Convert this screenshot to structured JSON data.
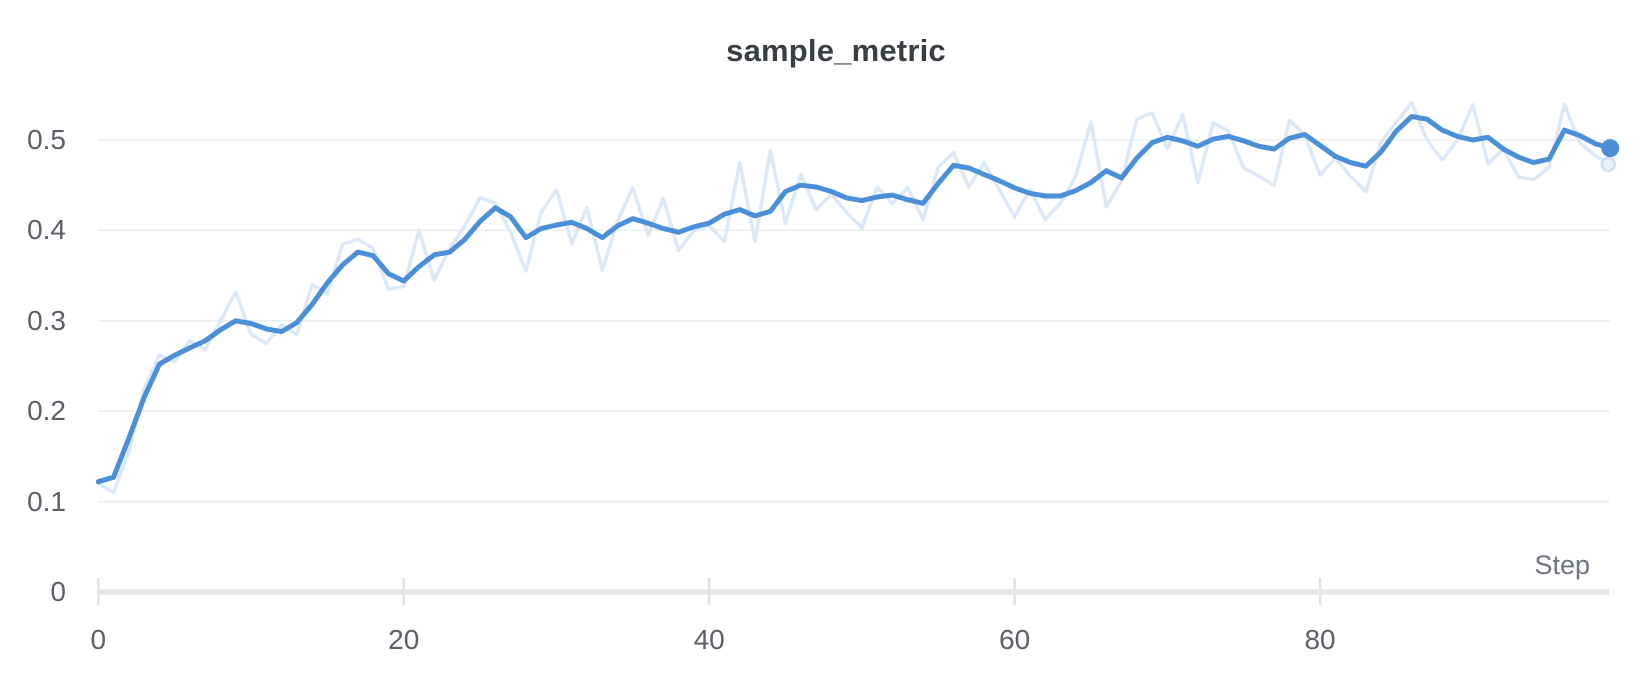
{
  "chart_data": {
    "type": "line",
    "title": "sample_metric",
    "xlabel": "Step",
    "ylabel": "",
    "x_range": [
      0,
      99
    ],
    "ylim": [
      0,
      0.55
    ],
    "grid": "horizontal",
    "legend": "none",
    "y_ticks": [
      {
        "value": 0,
        "label": "0"
      },
      {
        "value": 0.1,
        "label": "0.1"
      },
      {
        "value": 0.2,
        "label": "0.2"
      },
      {
        "value": 0.3,
        "label": "0.3"
      },
      {
        "value": 0.4,
        "label": "0.4"
      },
      {
        "value": 0.5,
        "label": "0.5"
      }
    ],
    "x_ticks": [
      {
        "value": 0,
        "label": "0"
      },
      {
        "value": 20,
        "label": "20"
      },
      {
        "value": 40,
        "label": "40"
      },
      {
        "value": 60,
        "label": "60"
      },
      {
        "value": 80,
        "label": "80"
      }
    ],
    "series": [
      {
        "name": "raw",
        "color": "#dce8f8",
        "line_width": 3.5,
        "values": [
          0.12,
          0.11,
          0.155,
          0.225,
          0.262,
          0.255,
          0.278,
          0.268,
          0.3,
          0.332,
          0.285,
          0.275,
          0.295,
          0.285,
          0.34,
          0.33,
          0.385,
          0.39,
          0.38,
          0.335,
          0.338,
          0.4,
          0.345,
          0.38,
          0.405,
          0.436,
          0.43,
          0.398,
          0.355,
          0.42,
          0.445,
          0.386,
          0.425,
          0.356,
          0.41,
          0.447,
          0.395,
          0.435,
          0.378,
          0.4,
          0.405,
          0.388,
          0.475,
          0.388,
          0.488,
          0.408,
          0.462,
          0.423,
          0.44,
          0.42,
          0.403,
          0.448,
          0.43,
          0.447,
          0.412,
          0.47,
          0.486,
          0.448,
          0.475,
          0.445,
          0.415,
          0.445,
          0.412,
          0.43,
          0.46,
          0.52,
          0.426,
          0.455,
          0.523,
          0.53,
          0.49,
          0.528,
          0.453,
          0.519,
          0.51,
          0.469,
          0.46,
          0.45,
          0.522,
          0.505,
          0.461,
          0.48,
          0.46,
          0.443,
          0.498,
          0.52,
          0.541,
          0.5,
          0.478,
          0.5,
          0.539,
          0.474,
          0.49,
          0.459,
          0.456,
          0.47,
          0.539,
          0.497,
          0.483,
          0.473
        ]
      },
      {
        "name": "smoothed",
        "color": "#4a8fd8",
        "line_width": 5,
        "values": [
          0.122,
          0.127,
          0.17,
          0.215,
          0.252,
          0.262,
          0.27,
          0.278,
          0.29,
          0.3,
          0.297,
          0.291,
          0.288,
          0.298,
          0.318,
          0.342,
          0.362,
          0.376,
          0.372,
          0.352,
          0.344,
          0.36,
          0.373,
          0.376,
          0.39,
          0.41,
          0.425,
          0.415,
          0.392,
          0.402,
          0.406,
          0.409,
          0.402,
          0.392,
          0.405,
          0.413,
          0.408,
          0.402,
          0.398,
          0.404,
          0.408,
          0.418,
          0.423,
          0.416,
          0.421,
          0.443,
          0.45,
          0.448,
          0.443,
          0.436,
          0.433,
          0.437,
          0.439,
          0.434,
          0.43,
          0.452,
          0.472,
          0.469,
          0.462,
          0.455,
          0.447,
          0.441,
          0.438,
          0.438,
          0.444,
          0.453,
          0.466,
          0.458,
          0.48,
          0.497,
          0.503,
          0.499,
          0.493,
          0.501,
          0.504,
          0.499,
          0.493,
          0.49,
          0.502,
          0.506,
          0.494,
          0.482,
          0.475,
          0.471,
          0.487,
          0.51,
          0.526,
          0.523,
          0.511,
          0.504,
          0.5,
          0.503,
          0.49,
          0.481,
          0.475,
          0.479,
          0.511,
          0.505,
          0.496,
          0.491
        ]
      }
    ],
    "end_markers": {
      "smoothed_last_value": 0.491,
      "raw_last_value": 0.473
    },
    "colors": {
      "accent_line": "#4a8fd8",
      "raw_line": "#dce8f8",
      "end_dot_fill": "#4a8fd8",
      "ghost_dot_stroke": "#cfe0f6",
      "ghost_dot_fill": "#e9f1fb",
      "gridline": "#ebedef",
      "axis_line": "#e5e6e8",
      "tick_mark": "#dfe1e4",
      "title_text": "#3a3f46",
      "tick_text": "#5b6069",
      "axis_title_text": "#6e7480"
    }
  }
}
